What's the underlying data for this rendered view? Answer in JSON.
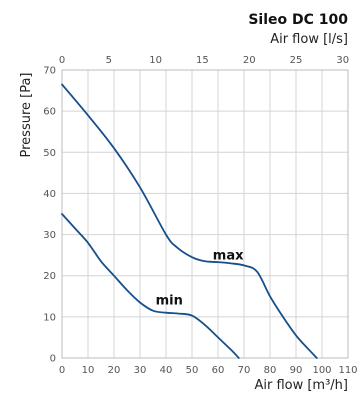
{
  "chart_data": {
    "type": "line",
    "title": "Sileo DC 100",
    "xlabel": "Air flow [m³/h]",
    "x2label": "Air flow [l/s]",
    "ylabel": "Pressure [Pa]",
    "xlim": [
      0,
      110
    ],
    "x2lim": [
      0,
      30.556
    ],
    "ylim": [
      0,
      70
    ],
    "x_ticks": [
      0,
      10,
      20,
      30,
      40,
      50,
      60,
      70,
      80,
      90,
      100,
      110
    ],
    "x2_ticks": [
      0,
      5,
      10,
      15,
      20,
      25,
      30
    ],
    "y_ticks": [
      0,
      10,
      20,
      30,
      40,
      50,
      60,
      70
    ],
    "grid": true,
    "series": [
      {
        "name": "max",
        "label_at": [
          58,
          24
        ],
        "points": [
          [
            0,
            66.5
          ],
          [
            10,
            59
          ],
          [
            20,
            51
          ],
          [
            30,
            41.5
          ],
          [
            40,
            30
          ],
          [
            44,
            27
          ],
          [
            50,
            24.5
          ],
          [
            55,
            23.5
          ],
          [
            60,
            23.3
          ],
          [
            65,
            23
          ],
          [
            70,
            22.5
          ],
          [
            75,
            21
          ],
          [
            80,
            15
          ],
          [
            85,
            10
          ],
          [
            90,
            5.5
          ],
          [
            95,
            2
          ],
          [
            98,
            0
          ]
        ]
      },
      {
        "name": "min",
        "label_at": [
          36,
          13
        ],
        "points": [
          [
            0,
            35
          ],
          [
            5,
            31.5
          ],
          [
            10,
            28
          ],
          [
            15,
            23.5
          ],
          [
            20,
            20
          ],
          [
            25,
            16.5
          ],
          [
            30,
            13.5
          ],
          [
            35,
            11.5
          ],
          [
            40,
            11
          ],
          [
            45,
            10.8
          ],
          [
            50,
            10.3
          ],
          [
            55,
            8
          ],
          [
            60,
            5
          ],
          [
            65,
            2
          ],
          [
            68,
            0
          ]
        ]
      }
    ]
  }
}
